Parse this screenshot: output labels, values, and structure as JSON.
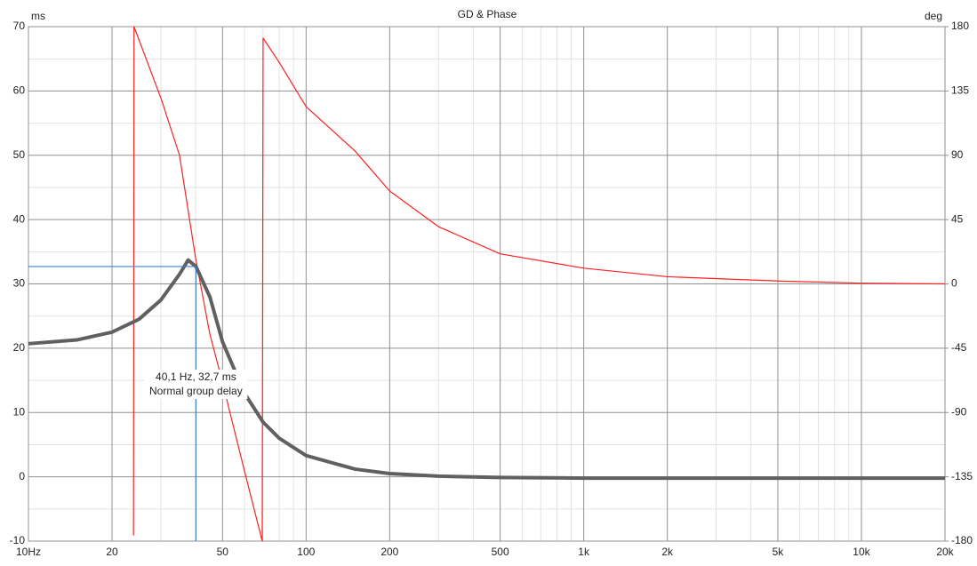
{
  "chart_data": {
    "type": "line",
    "title": "GD & Phase",
    "y_unit": "ms",
    "y2_unit": "deg",
    "log_x": true,
    "grid": true,
    "xlim": [
      10,
      20000
    ],
    "xticks": [
      {
        "value": 10,
        "label": "10Hz"
      },
      20,
      50,
      100,
      200,
      500,
      {
        "value": 1000,
        "label": "1k"
      },
      {
        "value": 2000,
        "label": "2k"
      },
      {
        "value": 5000,
        "label": "5k"
      },
      {
        "value": 10000,
        "label": "10k"
      },
      {
        "value": 20000,
        "label": "20k"
      }
    ],
    "xminorticks": [
      30,
      40,
      60,
      70,
      80,
      90,
      300,
      400,
      600,
      700,
      800,
      900,
      3000,
      4000,
      6000,
      7000,
      8000,
      9000
    ],
    "ylim": [
      -10,
      70
    ],
    "yticks": [
      -10,
      0,
      10,
      20,
      30,
      40,
      50,
      60,
      70
    ],
    "yminorticks": [
      -5,
      5,
      15,
      25,
      35,
      45,
      55,
      65
    ],
    "y2lim": [
      -180,
      180
    ],
    "y2ticks": [
      -180,
      -135,
      -90,
      -45,
      0,
      45,
      90,
      135,
      180
    ],
    "series": [
      {
        "name": "Normal group delay",
        "color": "#606060",
        "x": [
          10,
          15,
          20,
          25,
          30,
          35,
          37.6,
          40.1,
          45,
          50,
          60,
          70,
          80,
          100,
          150,
          200,
          300,
          500,
          1000,
          20000
        ],
        "values": [
          20.7,
          21.3,
          22.5,
          24.5,
          27.5,
          31.5,
          33.7,
          32.7,
          28,
          21,
          13,
          8.5,
          6,
          3.3,
          1.2,
          0.5,
          0.1,
          -0.1,
          -0.2,
          -0.2
        ]
      },
      {
        "name": "Phase",
        "color": "#ff2020",
        "axis": "y2",
        "x": [
          23.9,
          24,
          30,
          35,
          40,
          45,
          50,
          60,
          69.5,
          70,
          80,
          100,
          150,
          200,
          300,
          500,
          1000,
          2000,
          5000,
          10000,
          20000
        ],
        "values": [
          -176,
          180,
          130,
          90,
          18,
          -35,
          -69,
          -131,
          -180,
          172,
          155,
          124,
          93,
          65,
          40,
          21,
          11,
          5,
          2,
          0.5,
          0
        ]
      }
    ],
    "cursor": {
      "x": 40.1,
      "y": 32.7,
      "label": "40,1 Hz, 32,7 ms",
      "sublabel": "Normal group delay",
      "color": "#3a7fd5"
    }
  }
}
